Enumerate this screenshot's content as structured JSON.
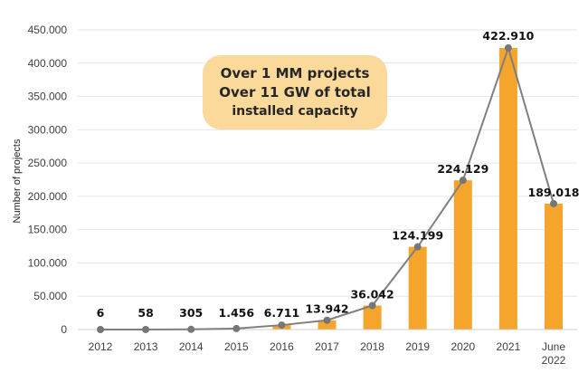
{
  "chart_data": {
    "type": "bar",
    "title": "",
    "xlabel": "",
    "ylabel": "Number of projects",
    "ylim": [
      0,
      450000
    ],
    "yticks": [
      {
        "value": 0,
        "label": "0"
      },
      {
        "value": 50000,
        "label": "50.000"
      },
      {
        "value": 100000,
        "label": "100.000"
      },
      {
        "value": 150000,
        "label": "150.000"
      },
      {
        "value": 200000,
        "label": "200.000"
      },
      {
        "value": 250000,
        "label": "250.000"
      },
      {
        "value": 300000,
        "label": "300.000"
      },
      {
        "value": 350000,
        "label": "350.000"
      },
      {
        "value": 400000,
        "label": "400.000"
      },
      {
        "value": 450000,
        "label": "450.000"
      }
    ],
    "categories": [
      [
        "2012"
      ],
      [
        "2013"
      ],
      [
        "2014"
      ],
      [
        "2015"
      ],
      [
        "2016"
      ],
      [
        "2017"
      ],
      [
        "2018"
      ],
      [
        "2019"
      ],
      [
        "2020"
      ],
      [
        "2021"
      ],
      [
        "June",
        "2022"
      ]
    ],
    "values": [
      6,
      58,
      305,
      1456,
      6711,
      13942,
      36042,
      124199,
      224129,
      422910,
      189018
    ],
    "value_labels": [
      "6",
      "58",
      "305",
      "1.456",
      "6.711",
      "13.942",
      "36.042",
      "124.199",
      "224.129",
      "422.910",
      "189.018"
    ],
    "series_overlay": "line",
    "colors": {
      "bar": "#f5a52b",
      "line": "#7f7f7f",
      "marker": "#767676",
      "grid": "#e6e6e6",
      "callout_bg": "#fad99a"
    }
  },
  "annotation": {
    "line1": "Over 1 MM projects",
    "line2": "Over 11 GW of total",
    "line3": "installed capacity"
  }
}
